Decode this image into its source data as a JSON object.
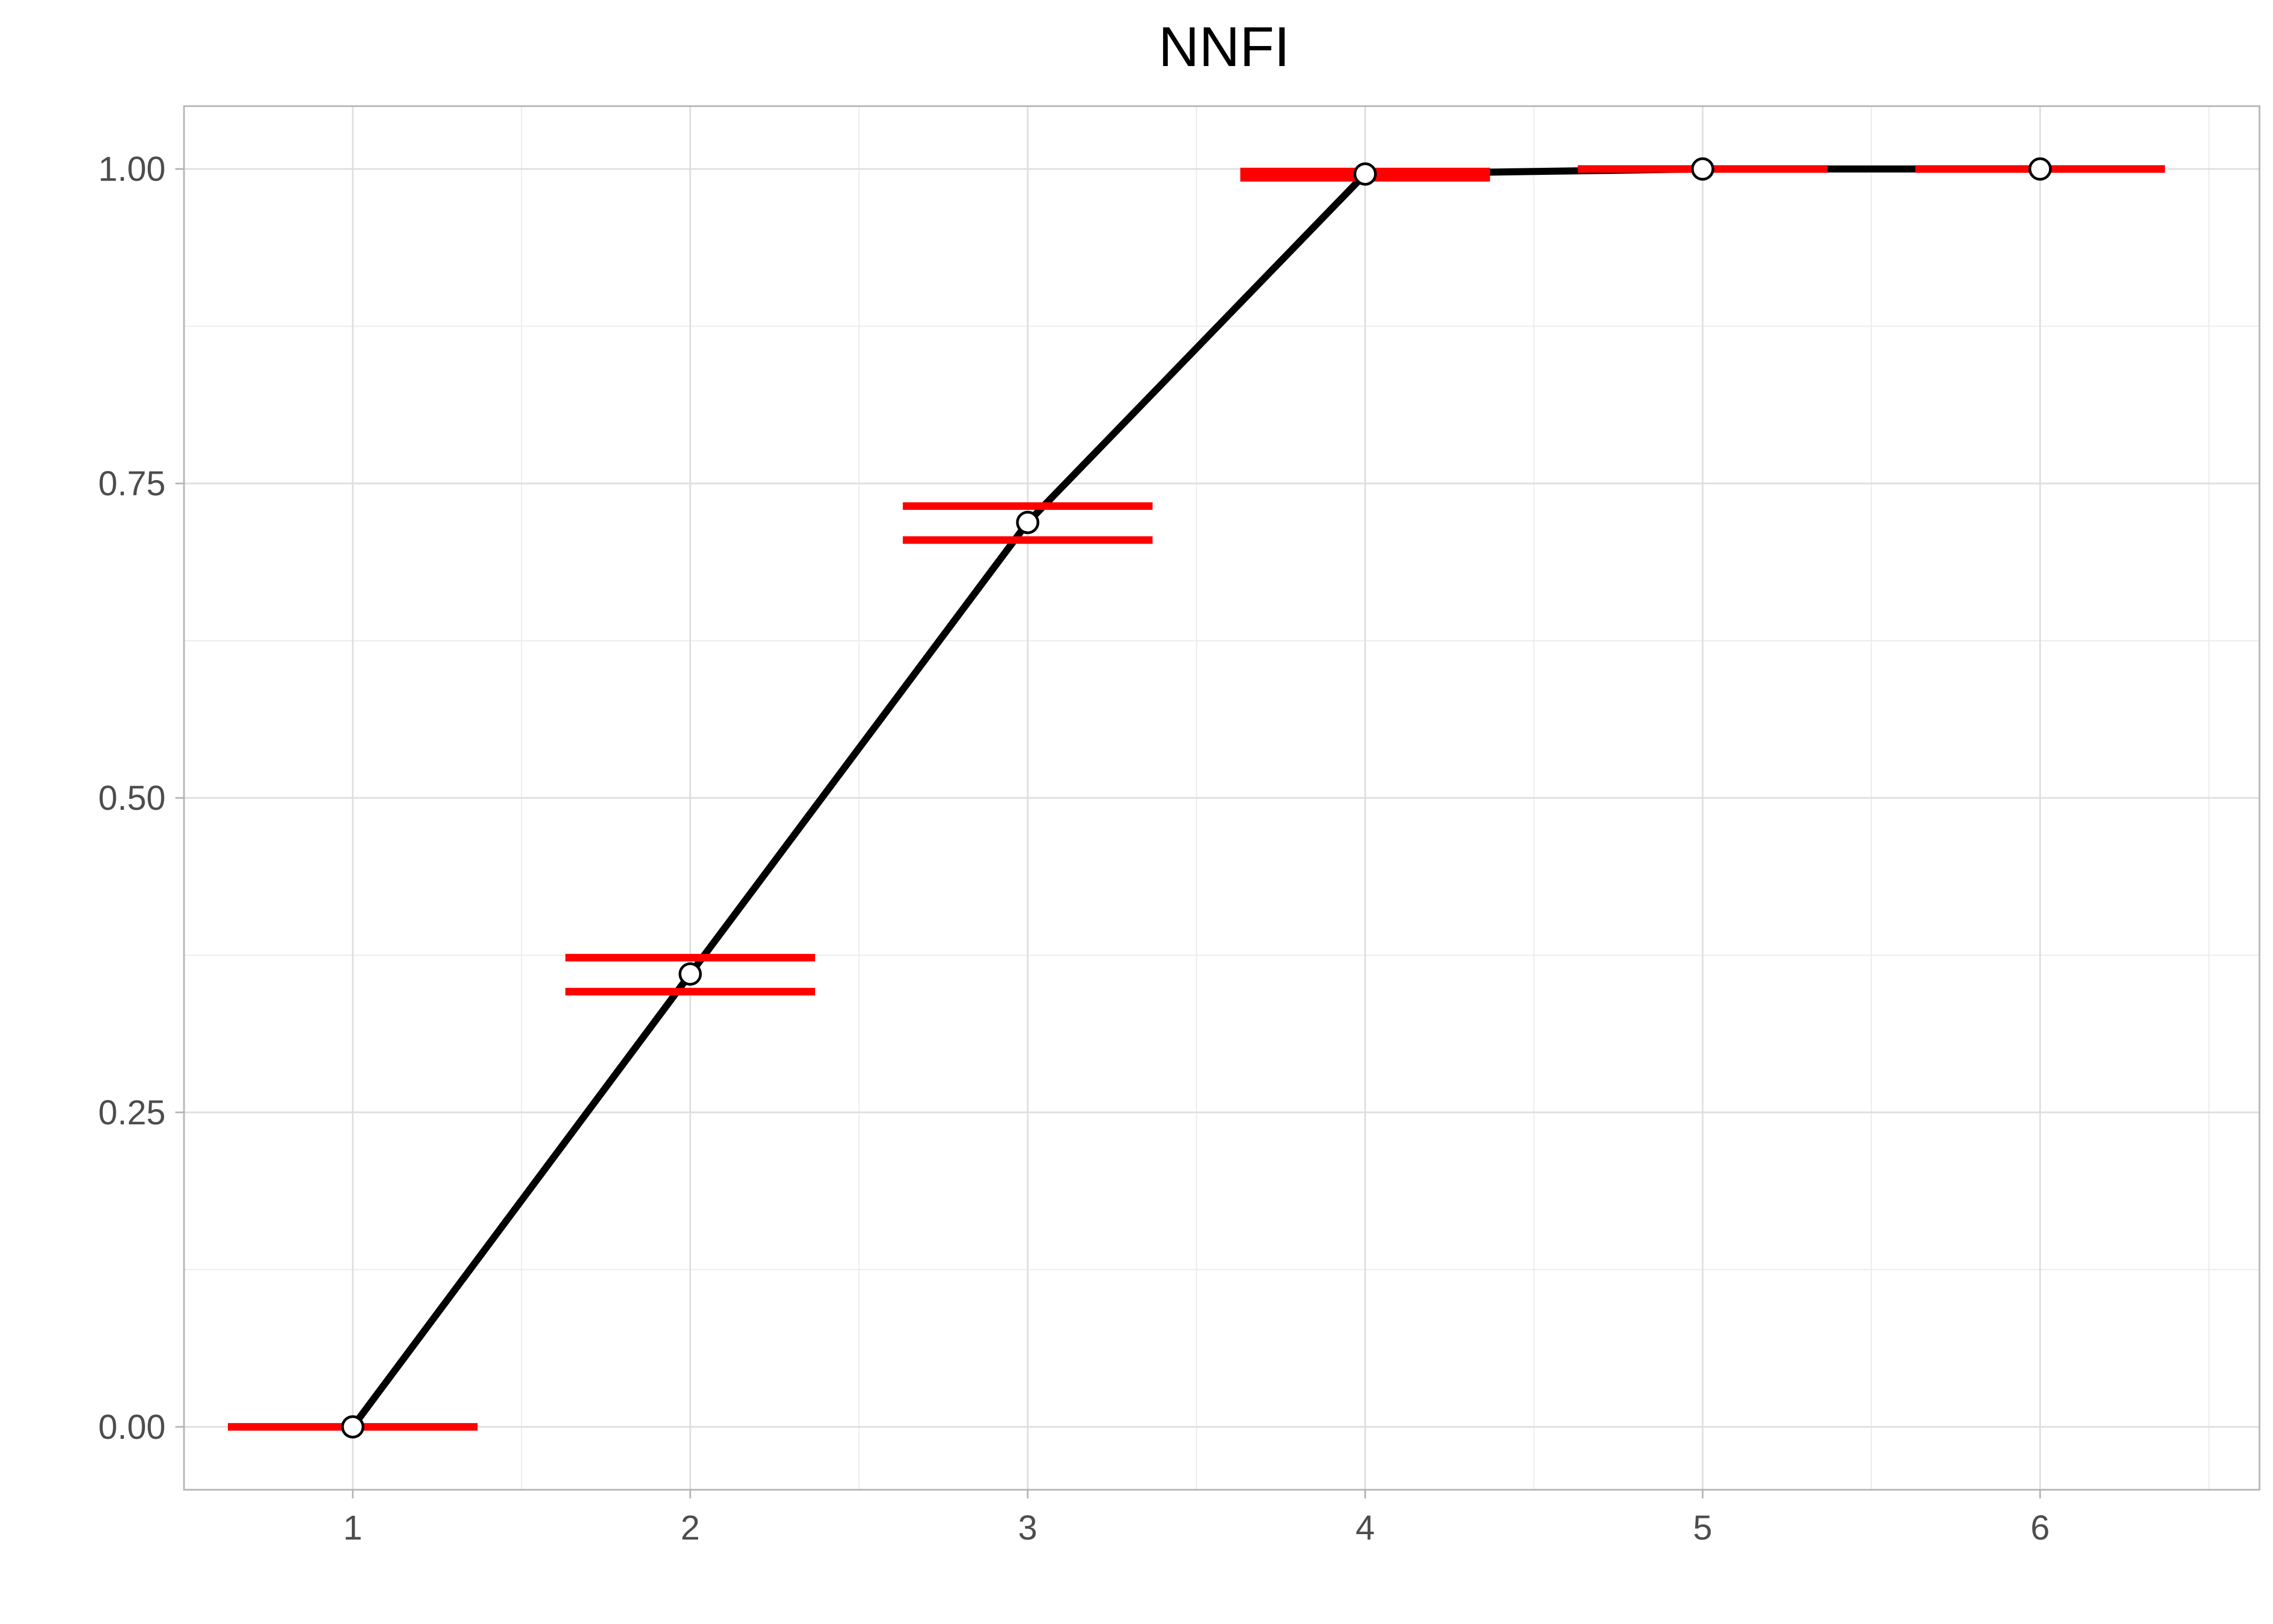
{
  "chart_data": {
    "type": "line",
    "title": "NNFI",
    "xlabel": "",
    "ylabel": "",
    "x": [
      1,
      2,
      3,
      4,
      5,
      6
    ],
    "series": [
      {
        "values": [
          0.0,
          0.36,
          0.719,
          0.996,
          1.0,
          1.0
        ],
        "color": "#000000",
        "marker": "open-circle"
      }
    ],
    "intervals": [
      {
        "x": 1,
        "lower": 0.0,
        "upper": 0.0
      },
      {
        "x": 2,
        "lower": 0.346,
        "upper": 0.373
      },
      {
        "x": 3,
        "lower": 0.705,
        "upper": 0.732
      },
      {
        "x": 4,
        "lower": 0.993,
        "upper": 0.998
      },
      {
        "x": 5,
        "lower": 1.0,
        "upper": 1.0
      },
      {
        "x": 6,
        "lower": 1.0,
        "upper": 1.0
      }
    ],
    "interval_color": "#ff0000",
    "xlim": [
      0.5,
      6.65
    ],
    "ylim": [
      -0.05,
      1.05
    ],
    "xticks": [
      "1",
      "2",
      "3",
      "4",
      "5",
      "6"
    ],
    "yticks": [
      "0.00",
      "0.25",
      "0.50",
      "0.75",
      "1.00"
    ],
    "ytick_values": [
      0.0,
      0.25,
      0.5,
      0.75,
      1.0
    ],
    "grid": true,
    "legend": "none"
  }
}
